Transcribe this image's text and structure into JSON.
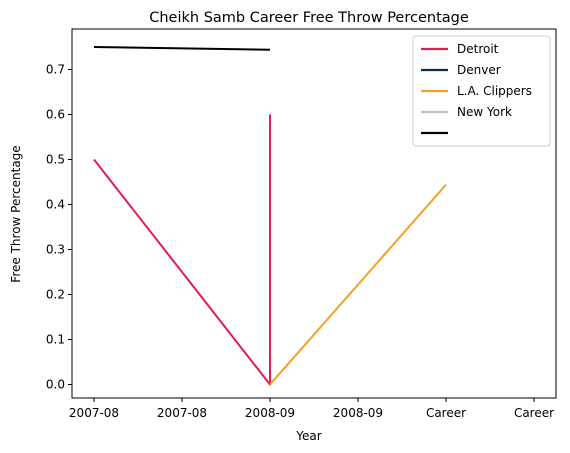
{
  "chart_data": {
    "type": "line",
    "title": "Cheikh Samb Career Free Throw Percentage",
    "xlabel": "Year",
    "ylabel": "Free Throw Percentage",
    "x_tick_labels": [
      "2007-08",
      "2007-08",
      "2008-09",
      "2008-09",
      "Career",
      "Career"
    ],
    "ylim": [
      -0.03,
      0.79
    ],
    "y_ticks": [
      "0.0",
      "0.1",
      "0.2",
      "0.3",
      "0.4",
      "0.5",
      "0.6",
      "0.7"
    ],
    "grid": false,
    "legend_position": "top-right",
    "series": [
      {
        "name": "Detroit",
        "color": "#e31b4f",
        "points": [
          [
            0,
            0.5
          ],
          [
            2,
            0.0
          ],
          [
            2,
            0.6
          ]
        ]
      },
      {
        "name": "Denver",
        "color": "#0d2a4f",
        "points": []
      },
      {
        "name": "L.A. Clippers",
        "color": "#f5a025",
        "points": [
          [
            2,
            0.0
          ],
          [
            4,
            0.444
          ]
        ]
      },
      {
        "name": "New York",
        "color": "#c0c0c0",
        "points": []
      },
      {
        "name": "",
        "color": "#000000",
        "points": [
          [
            0,
            0.75
          ],
          [
            2,
            0.744
          ]
        ]
      }
    ]
  }
}
